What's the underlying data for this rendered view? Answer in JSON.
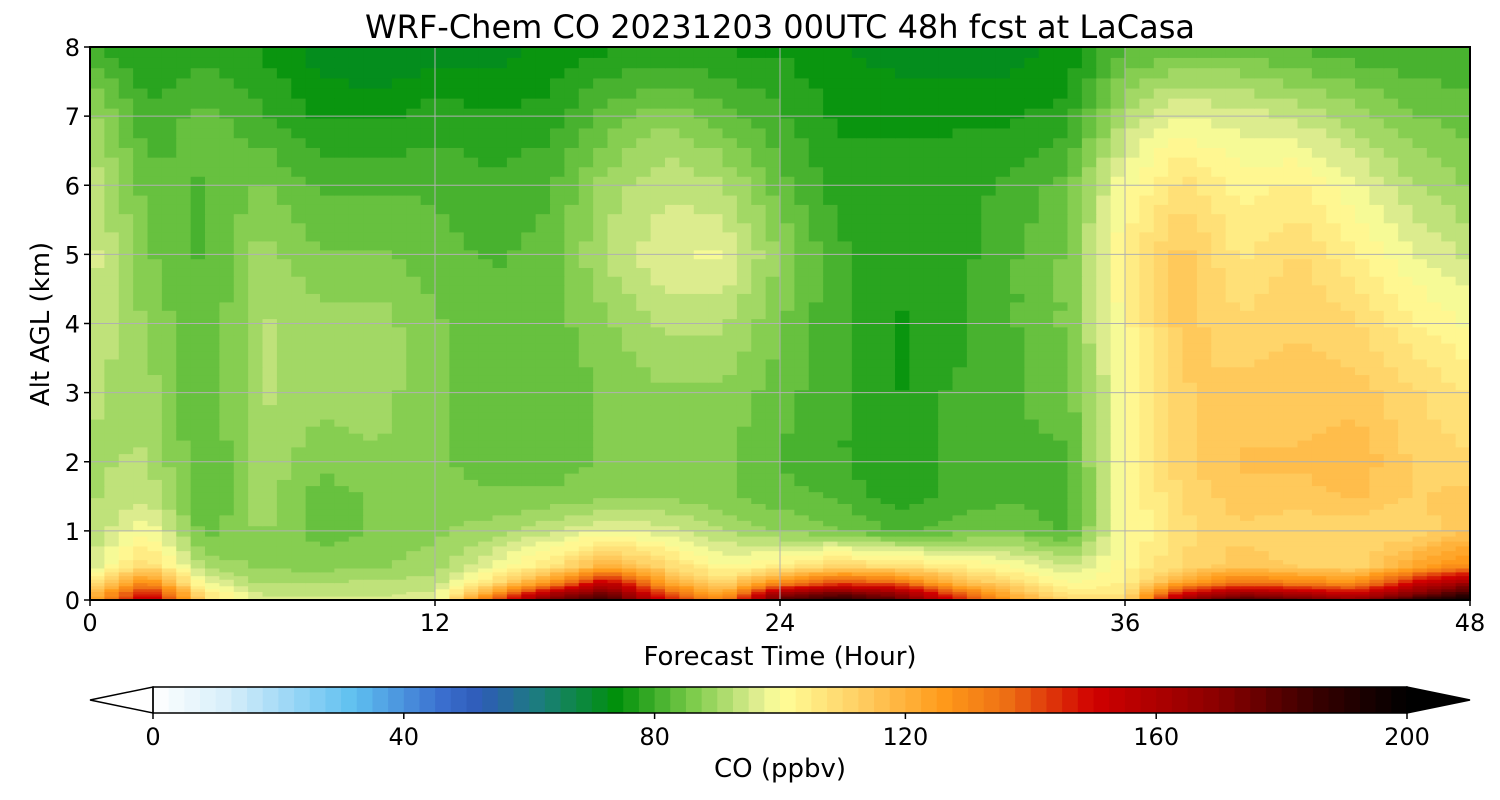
{
  "chart_data": {
    "type": "heatmap",
    "title": "WRF-Chem CO  20231203 00UTC 48h fcst at LaCasa",
    "xlabel": "Forecast Time (Hour)",
    "ylabel": "Alt AGL (km)",
    "xlim": [
      0,
      48
    ],
    "ylim": [
      0,
      8
    ],
    "xticks": [
      0,
      12,
      24,
      36,
      48
    ],
    "yticks": [
      0,
      1,
      2,
      3,
      4,
      5,
      6,
      7,
      8
    ],
    "grid": true,
    "x": [
      0,
      2,
      4,
      6,
      8,
      10,
      12,
      14,
      16,
      18,
      20,
      22,
      24,
      26,
      28,
      30,
      32,
      34,
      36,
      38,
      40,
      42,
      44,
      46,
      48
    ],
    "y": [
      0,
      0.1,
      0.25,
      0.5,
      1,
      1.5,
      2,
      3,
      4,
      5,
      6,
      7,
      8
    ],
    "z": [
      [
        120,
        160,
        108,
        96,
        95,
        95,
        96,
        140,
        178,
        186,
        150,
        130,
        182,
        190,
        180,
        150,
        126,
        110,
        108,
        170,
        186,
        180,
        170,
        188,
        200
      ],
      [
        116,
        150,
        106,
        94,
        94,
        94,
        95,
        126,
        160,
        176,
        140,
        120,
        165,
        176,
        168,
        140,
        120,
        106,
        106,
        150,
        166,
        160,
        152,
        170,
        186
      ],
      [
        106,
        132,
        98,
        91,
        92,
        92,
        93,
        108,
        128,
        156,
        124,
        110,
        130,
        142,
        138,
        120,
        110,
        100,
        104,
        124,
        136,
        132,
        128,
        150,
        166
      ],
      [
        95,
        110,
        90,
        88,
        87,
        88,
        90,
        98,
        106,
        120,
        110,
        100,
        104,
        110,
        108,
        104,
        100,
        94,
        102,
        110,
        114,
        112,
        110,
        122,
        130
      ],
      [
        92,
        100,
        84,
        89,
        84,
        86,
        88,
        90,
        94,
        98,
        96,
        92,
        88,
        86,
        82,
        84,
        86,
        82,
        100,
        108,
        112,
        110,
        110,
        110,
        116
      ],
      [
        91,
        94,
        82,
        90,
        84,
        86,
        87,
        86,
        86,
        88,
        88,
        86,
        84,
        82,
        78,
        80,
        82,
        80,
        100,
        110,
        114,
        114,
        116,
        112,
        114
      ],
      [
        91,
        92,
        82,
        91,
        86,
        88,
        86,
        84,
        84,
        86,
        86,
        86,
        82,
        80,
        76,
        80,
        82,
        82,
        100,
        112,
        116,
        116,
        118,
        112,
        110
      ],
      [
        92,
        90,
        82,
        92,
        90,
        90,
        86,
        84,
        83,
        86,
        88,
        88,
        84,
        80,
        76,
        80,
        82,
        84,
        100,
        112,
        114,
        114,
        114,
        110,
        106
      ],
      [
        94,
        88,
        82,
        92,
        90,
        90,
        86,
        84,
        84,
        88,
        92,
        92,
        86,
        80,
        76,
        78,
        82,
        86,
        102,
        114,
        110,
        112,
        110,
        104,
        100
      ],
      [
        96,
        86,
        82,
        90,
        86,
        86,
        84,
        82,
        84,
        92,
        97,
        98,
        88,
        80,
        78,
        78,
        82,
        86,
        104,
        114,
        106,
        110,
        104,
        98,
        94
      ],
      [
        94,
        84,
        82,
        86,
        82,
        82,
        82,
        80,
        82,
        90,
        94,
        92,
        84,
        78,
        78,
        78,
        80,
        84,
        100,
        108,
        102,
        104,
        98,
        92,
        88
      ],
      [
        90,
        80,
        84,
        80,
        76,
        76,
        78,
        77,
        78,
        84,
        88,
        84,
        80,
        76,
        76,
        76,
        76,
        78,
        92,
        98,
        96,
        94,
        90,
        86,
        84
      ],
      [
        80,
        76,
        78,
        76,
        72,
        70,
        72,
        72,
        74,
        76,
        76,
        76,
        76,
        74,
        72,
        72,
        72,
        74,
        82,
        84,
        84,
        82,
        80,
        80,
        80
      ]
    ],
    "colorbar": {
      "label": "CO  (ppbv)",
      "min": 0,
      "max": 200,
      "ticks": [
        0,
        40,
        80,
        120,
        160,
        200
      ],
      "extend": "both",
      "stops": [
        {
          "v": 0,
          "c": "#ffffff"
        },
        {
          "v": 12,
          "c": "#d6eefa"
        },
        {
          "v": 24,
          "c": "#8ed2f5"
        },
        {
          "v": 32,
          "c": "#5fc0f0"
        },
        {
          "v": 46,
          "c": "#3a6fcf"
        },
        {
          "v": 52,
          "c": "#2f5bb8"
        },
        {
          "v": 62,
          "c": "#1a7f7a"
        },
        {
          "v": 74,
          "c": "#00900a"
        },
        {
          "v": 86,
          "c": "#7ccb4a"
        },
        {
          "v": 96,
          "c": "#dcec8e"
        },
        {
          "v": 100,
          "c": "#ffff99"
        },
        {
          "v": 112,
          "c": "#ffd166"
        },
        {
          "v": 126,
          "c": "#ff9a1a"
        },
        {
          "v": 136,
          "c": "#ee7014"
        },
        {
          "v": 150,
          "c": "#d00000"
        },
        {
          "v": 170,
          "c": "#8a0000"
        },
        {
          "v": 185,
          "c": "#3a0000"
        },
        {
          "v": 200,
          "c": "#000000"
        }
      ]
    }
  }
}
